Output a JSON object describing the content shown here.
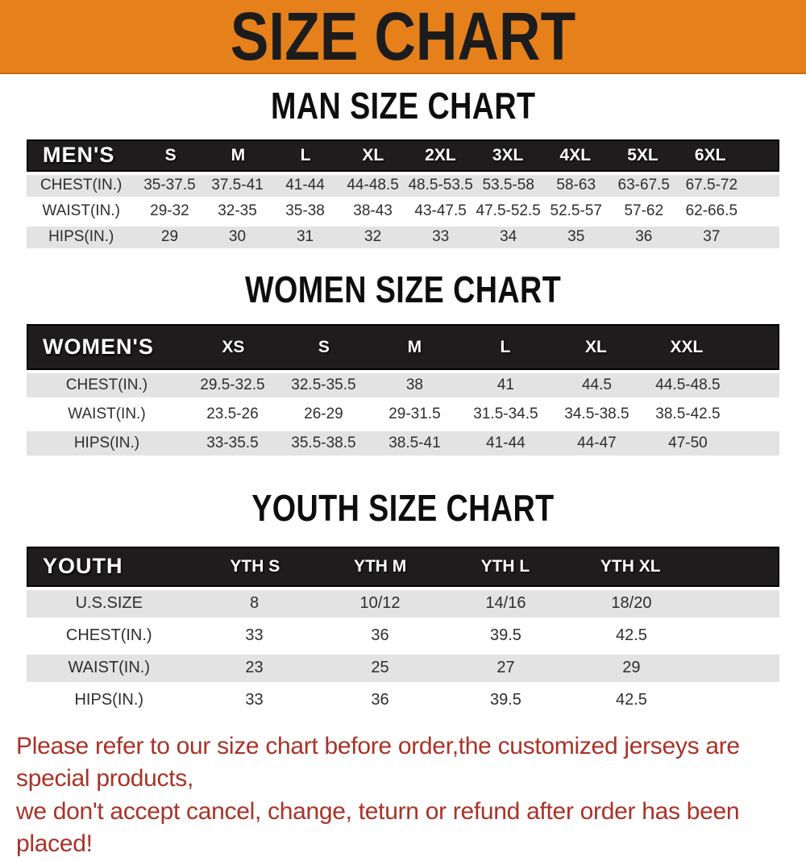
{
  "banner": {
    "title": "SIZE CHART"
  },
  "colors": {
    "banner_bg": "#E6801B",
    "header_bar_bg": "#1E1C1C",
    "alt_row_bg": "#E3E3E3",
    "note_text": "#A93226"
  },
  "note": {
    "line1": "Please refer to our size chart before order,the customized jerseys are special products,",
    "line2": "we don't accept cancel, change, teturn or refund after order has been placed!"
  },
  "chart_data": [
    {
      "type": "table",
      "title": "MAN SIZE CHART",
      "columns": [
        "MEN'S",
        "S",
        "M",
        "L",
        "XL",
        "2XL",
        "3XL",
        "4XL",
        "5XL",
        "6XL"
      ],
      "rows": [
        [
          "CHEST(IN.)",
          "35-37.5",
          "37.5-41",
          "41-44",
          "44-48.5",
          "48.5-53.5",
          "53.5-58",
          "58-63",
          "63-67.5",
          "67.5-72"
        ],
        [
          "WAIST(IN.)",
          "29-32",
          "32-35",
          "35-38",
          "38-43",
          "43-47.5",
          "47.5-52.5",
          "52.5-57",
          "57-62",
          "62-66.5"
        ],
        [
          "HIPS(IN.)",
          "29",
          "30",
          "31",
          "32",
          "33",
          "34",
          "35",
          "36",
          "37"
        ]
      ]
    },
    {
      "type": "table",
      "title": "WOMEN SIZE CHART",
      "columns": [
        "WOMEN'S",
        "XS",
        "S",
        "M",
        "L",
        "XL",
        "XXL"
      ],
      "rows": [
        [
          "CHEST(IN.)",
          "29.5-32.5",
          "32.5-35.5",
          "38",
          "41",
          "44.5",
          "44.5-48.5"
        ],
        [
          "WAIST(IN.)",
          "23.5-26",
          "26-29",
          "29-31.5",
          "31.5-34.5",
          "34.5-38.5",
          "38.5-42.5"
        ],
        [
          "HIPS(IN.)",
          "33-35.5",
          "35.5-38.5",
          "38.5-41",
          "41-44",
          "44-47",
          "47-50"
        ]
      ]
    },
    {
      "type": "table",
      "title": "YOUTH SIZE CHART",
      "columns": [
        "YOUTH",
        "YTH S",
        "YTH M",
        "YTH L",
        "YTH XL"
      ],
      "rows": [
        [
          "U.S.SIZE",
          "8",
          "10/12",
          "14/16",
          "18/20"
        ],
        [
          "CHEST(IN.)",
          "33",
          "36",
          "39.5",
          "42.5"
        ],
        [
          "WAIST(IN.)",
          "23",
          "25",
          "27",
          "29"
        ],
        [
          "HIPS(IN.)",
          "33",
          "36",
          "39.5",
          "42.5"
        ]
      ]
    }
  ]
}
